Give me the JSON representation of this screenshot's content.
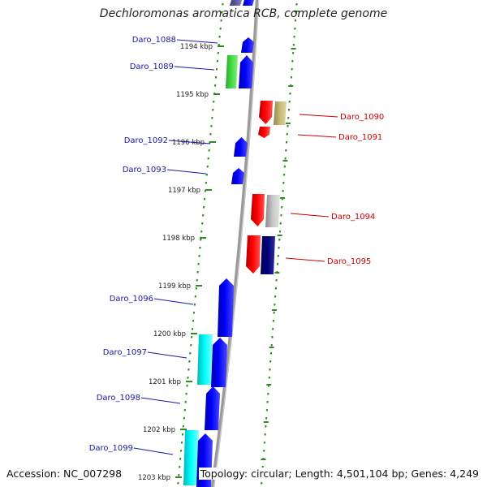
{
  "map": {
    "title": "Dechloromonas aromatica RCB, complete genome",
    "accession": "Accession: NC_007298",
    "topology": "Topology: circular",
    "length": "Length: 4,501,104 bp",
    "genes": "Genes: 4,249"
  },
  "colors": {
    "forward_gene": "#0000ff",
    "reverse_gene": "#ff0000",
    "backbone": "#999999",
    "tick": "#2e8b1f",
    "forward_label": "#1a1aa6",
    "reverse_label": "#cc0000"
  },
  "scale_ticks": [
    {
      "label": "1194 kbp"
    },
    {
      "label": "1195 kbp"
    },
    {
      "label": "1196 kbp"
    },
    {
      "label": "1197 kbp"
    },
    {
      "label": "1198 kbp"
    },
    {
      "label": "1199 kbp"
    },
    {
      "label": "1200 kbp"
    },
    {
      "label": "1201 kbp"
    },
    {
      "label": "1202 kbp"
    },
    {
      "label": "1203 kbp"
    }
  ],
  "gene_labels": [
    {
      "name": "Daro_1088",
      "strand": "forward"
    },
    {
      "name": "Daro_1089",
      "strand": "forward"
    },
    {
      "name": "Daro_1090",
      "strand": "reverse"
    },
    {
      "name": "Daro_1091",
      "strand": "reverse"
    },
    {
      "name": "Daro_1092",
      "strand": "forward"
    },
    {
      "name": "Daro_1093",
      "strand": "forward"
    },
    {
      "name": "Daro_1094",
      "strand": "reverse"
    },
    {
      "name": "Daro_1095",
      "strand": "reverse"
    },
    {
      "name": "Daro_1096",
      "strand": "forward"
    },
    {
      "name": "Daro_1097",
      "strand": "forward"
    },
    {
      "name": "Daro_1098",
      "strand": "forward"
    },
    {
      "name": "Daro_1099",
      "strand": "forward"
    }
  ]
}
